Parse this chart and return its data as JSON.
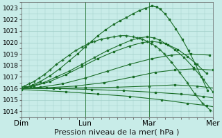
{
  "xlabel": "Pression niveau de la mer( hPa )",
  "ylim": [
    1013.5,
    1023.5
  ],
  "yticks": [
    1014,
    1015,
    1016,
    1017,
    1018,
    1019,
    1020,
    1021,
    1022,
    1023
  ],
  "xtick_labels": [
    "Dim",
    "Lun",
    "Mar",
    "Mer"
  ],
  "xtick_positions": [
    0,
    1,
    2,
    3
  ],
  "xlim": [
    0,
    3.0
  ],
  "bg_color": "#c8ece8",
  "grid_color": "#a0cfc8",
  "line_color": "#1a6e28",
  "xlabel_fontsize": 8,
  "ytick_fontsize": 6.5,
  "xtick_fontsize": 7.5,
  "lines": [
    {
      "x": [
        0.0,
        0.08,
        0.18,
        0.3,
        0.45,
        0.6,
        0.75,
        0.88,
        1.0,
        1.1,
        1.2,
        1.32,
        1.45,
        1.55,
        1.65,
        1.75,
        1.85,
        1.95,
        2.05,
        2.12,
        2.18,
        2.25,
        2.32,
        2.42,
        2.52,
        2.62,
        2.72,
        2.82,
        2.92
      ],
      "y": [
        1016.0,
        1016.1,
        1016.3,
        1016.6,
        1017.1,
        1017.7,
        1018.4,
        1019.0,
        1019.6,
        1020.1,
        1020.6,
        1021.1,
        1021.6,
        1021.9,
        1022.2,
        1022.5,
        1022.8,
        1023.0,
        1023.2,
        1023.1,
        1022.9,
        1022.5,
        1022.0,
        1021.2,
        1020.3,
        1019.3,
        1018.2,
        1017.0,
        1015.8
      ],
      "marker": "s",
      "ms": 1.5,
      "lw": 0.8
    },
    {
      "x": [
        0.0,
        0.05,
        0.12,
        0.2,
        0.28,
        0.36,
        0.45,
        0.55,
        0.65,
        0.75,
        0.85,
        0.95,
        1.05,
        1.15,
        1.25,
        1.35,
        1.45,
        1.55,
        1.65,
        1.75,
        1.82,
        1.9,
        1.97,
        2.04,
        2.1,
        2.17,
        2.24,
        2.35,
        2.48,
        2.6,
        2.72,
        2.84,
        2.96
      ],
      "y": [
        1016.1,
        1016.2,
        1016.4,
        1016.6,
        1016.9,
        1017.2,
        1017.6,
        1018.1,
        1018.5,
        1018.9,
        1019.3,
        1019.6,
        1019.9,
        1020.1,
        1020.3,
        1020.4,
        1020.5,
        1020.6,
        1020.6,
        1020.5,
        1020.4,
        1020.3,
        1020.1,
        1019.9,
        1019.7,
        1019.4,
        1019.0,
        1018.3,
        1017.4,
        1016.5,
        1015.5,
        1014.7,
        1014.1
      ],
      "marker": "+",
      "ms": 2.5,
      "lw": 0.8
    },
    {
      "x": [
        0.0,
        0.15,
        0.35,
        0.55,
        0.75,
        0.95,
        1.15,
        1.35,
        1.55,
        1.72,
        1.85,
        1.97,
        2.08,
        2.17,
        2.26,
        2.4,
        2.55,
        2.7,
        2.85,
        3.0
      ],
      "y": [
        1016.0,
        1016.2,
        1016.5,
        1017.0,
        1017.5,
        1018.1,
        1018.7,
        1019.3,
        1019.8,
        1020.2,
        1020.4,
        1020.5,
        1020.4,
        1020.2,
        1019.9,
        1019.4,
        1018.7,
        1017.8,
        1016.8,
        1015.7
      ],
      "marker": "s",
      "ms": 1.5,
      "lw": 0.8
    },
    {
      "x": [
        0.0,
        0.2,
        0.45,
        0.7,
        0.95,
        1.2,
        1.45,
        1.7,
        1.9,
        2.05,
        2.18,
        2.3,
        2.45,
        2.6,
        2.75,
        2.9
      ],
      "y": [
        1016.0,
        1016.2,
        1016.6,
        1017.2,
        1017.9,
        1018.6,
        1019.2,
        1019.7,
        1020.0,
        1020.1,
        1020.0,
        1019.8,
        1019.4,
        1018.8,
        1018.1,
        1017.3
      ],
      "marker": "s",
      "ms": 1.5,
      "lw": 0.8
    },
    {
      "x": [
        0.0,
        0.3,
        0.65,
        1.0,
        1.35,
        1.7,
        2.05,
        2.35,
        2.65,
        2.95
      ],
      "y": [
        1016.0,
        1016.1,
        1016.4,
        1016.9,
        1017.5,
        1018.1,
        1018.6,
        1018.9,
        1019.0,
        1018.9
      ],
      "marker": "s",
      "ms": 1.5,
      "lw": 0.8
    },
    {
      "x": [
        0.0,
        0.4,
        0.85,
        1.3,
        1.75,
        2.1,
        2.4,
        2.7,
        3.0
      ],
      "y": [
        1016.0,
        1016.05,
        1016.2,
        1016.5,
        1017.0,
        1017.4,
        1017.6,
        1017.7,
        1017.6
      ],
      "marker": "s",
      "ms": 1.5,
      "lw": 0.8
    },
    {
      "x": [
        0.0,
        0.5,
        1.0,
        1.5,
        2.0,
        2.4,
        2.75,
        3.05
      ],
      "y": [
        1016.0,
        1016.0,
        1016.05,
        1016.1,
        1016.2,
        1016.3,
        1016.2,
        1016.0
      ],
      "marker": "s",
      "ms": 1.5,
      "lw": 0.8
    },
    {
      "x": [
        0.0,
        0.6,
        1.1,
        1.6,
        2.1,
        2.5,
        2.85,
        3.1
      ],
      "y": [
        1016.0,
        1015.98,
        1015.9,
        1015.8,
        1015.65,
        1015.5,
        1015.3,
        1015.1
      ],
      "marker": "s",
      "ms": 1.5,
      "lw": 0.8
    },
    {
      "x": [
        0.0,
        0.7,
        1.2,
        1.7,
        2.2,
        2.6,
        2.9,
        3.1
      ],
      "y": [
        1015.9,
        1015.7,
        1015.5,
        1015.3,
        1015.0,
        1014.7,
        1014.5,
        1014.3
      ],
      "marker": "s",
      "ms": 1.5,
      "lw": 0.8
    }
  ],
  "vline_positions": [
    1,
    2
  ],
  "vline_color": "#2a7a3a",
  "vline_lw": 0.6
}
